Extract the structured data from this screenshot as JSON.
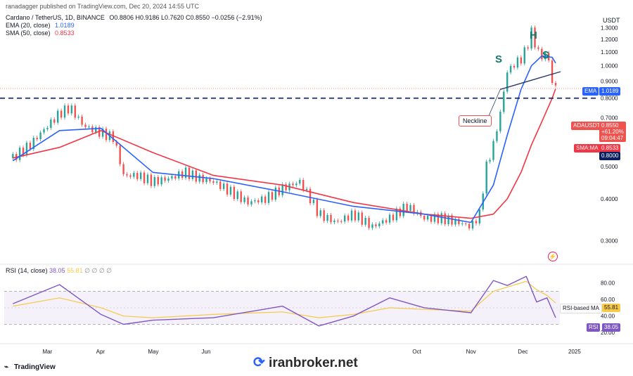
{
  "header": {
    "author_line": "ranadagger published on TradingView.com, Dec 20, 2024 14:55 UTC"
  },
  "legend": {
    "symbol_line": "Cardano / TetherUS, 1D, BINANCE",
    "ohlc": "O0.8806 H0.9186 L0.7620 C0.8550 −0.0256 (−2.91%)",
    "ema_label": "EMA (20, close)",
    "ema_value": "1.0189",
    "sma_label": "SMA (50, close)",
    "sma_value": "0.8533",
    "rsi_label": "RSI (14, close)",
    "rsi_value": "38.05",
    "rsi_ma_value": "55.81",
    "rsi_na": "∅ ∅ ∅ ∅"
  },
  "axis": {
    "currency": "USDT",
    "price_ticks": [
      "1.3000",
      "1.2000",
      "1.1000",
      "1.0000",
      "0.9000",
      "0.8000",
      "0.7000",
      "0.6000",
      "0.5000",
      "0.4000",
      "0.3000"
    ],
    "rsi_ticks": [
      "80.00",
      "60.00",
      "40.00",
      "20.00"
    ],
    "time_ticks": [
      "Mar",
      "Apr",
      "May",
      "Jun",
      "Oct",
      "Nov",
      "Dec",
      "2025"
    ]
  },
  "tags": {
    "ema_tag": "EMA",
    "ema_value": "1.0189",
    "symbol_tag": "ADAUSDT",
    "price_value": "0.8550",
    "change": "+61.20%",
    "countdown": "09:04:47",
    "sma_tag": "SMA:MA",
    "sma_value": "0.8533",
    "support_value": "0.8000",
    "rsi_ma_tag": "RSI-based MA",
    "rsi_ma_value": "55.81",
    "rsi_tag": "RSI",
    "rsi_value": "38.05"
  },
  "annotations": {
    "left_shoulder": "S",
    "head": "H",
    "right_shoulder": "S",
    "neckline": "Neckline"
  },
  "branding": {
    "tradingview": "TradingView",
    "watermark": "iranbroker.net"
  },
  "colors": {
    "up": "#26a69a",
    "down": "#ef5350",
    "ema": "#2962ff",
    "sma": "#f23645",
    "rsi": "#7e57c2",
    "rsi_ma": "#f7c948",
    "support_line": "#0b1f5e"
  },
  "chart_data": [
    {
      "type": "candlestick",
      "title": "Cardano / TetherUS, 1D, BINANCE",
      "ylim": [
        0.26,
        1.36
      ],
      "y_scale": "log",
      "ohlc_last": {
        "open": 0.8806,
        "high": 0.9186,
        "low": 0.762,
        "close": 0.855
      },
      "x_ticks": [
        "Mar",
        "Apr",
        "May",
        "Jun",
        "Oct",
        "Nov",
        "Dec",
        "2025"
      ],
      "support_level": 0.8,
      "close_series": {
        "x": [
          "Feb 10",
          "Feb 20",
          "Mar 1",
          "Mar 8",
          "Mar 14",
          "Mar 22",
          "Apr 1",
          "Apr 8",
          "Apr 14",
          "Apr 22",
          "May 1",
          "May 10",
          "May 20",
          "May 28",
          "Jun 5",
          "Jun 15",
          "Jun 25",
          "Jul 5",
          "Jul 15",
          "Jul 25",
          "Aug 5",
          "Aug 15",
          "Aug 25",
          "Sep 5",
          "Sep 15",
          "Sep 25",
          "Oct 5",
          "Oct 15",
          "Oct 25",
          "Nov 1",
          "Nov 6",
          "Nov 10",
          "Nov 14",
          "Nov 18",
          "Nov 22",
          "Nov 26",
          "Nov 30",
          "Dec 3",
          "Dec 6",
          "Dec 9",
          "Dec 12",
          "Dec 15",
          "Dec 18",
          "Dec 20"
        ],
        "y": [
          0.53,
          0.58,
          0.66,
          0.72,
          0.75,
          0.66,
          0.63,
          0.61,
          0.47,
          0.47,
          0.45,
          0.46,
          0.48,
          0.46,
          0.45,
          0.42,
          0.39,
          0.4,
          0.43,
          0.45,
          0.36,
          0.34,
          0.36,
          0.33,
          0.35,
          0.38,
          0.35,
          0.35,
          0.34,
          0.33,
          0.36,
          0.5,
          0.58,
          0.72,
          0.96,
          1.01,
          1.05,
          1.12,
          1.26,
          1.12,
          1.06,
          1.1,
          0.9,
          0.855
        ]
      },
      "series": [
        {
          "name": "EMA (20, close)",
          "last": 1.0189,
          "x": [
            "Feb 10",
            "Mar 8",
            "Apr 1",
            "May 1",
            "Jun 5",
            "Jul 15",
            "Aug 25",
            "Oct 5",
            "Nov 1",
            "Nov 14",
            "Nov 22",
            "Nov 30",
            "Dec 6",
            "Dec 12",
            "Dec 18",
            "Dec 20"
          ],
          "y": [
            0.52,
            0.64,
            0.65,
            0.48,
            0.46,
            0.42,
            0.38,
            0.36,
            0.34,
            0.44,
            0.62,
            0.85,
            1.0,
            1.07,
            1.06,
            1.0189
          ]
        },
        {
          "name": "SMA (50, close)",
          "last": 0.8533,
          "x": [
            "Feb 10",
            "Mar 8",
            "Apr 1",
            "May 1",
            "Jun 5",
            "Jul 15",
            "Aug 25",
            "Oct 5",
            "Nov 1",
            "Nov 14",
            "Nov 22",
            "Nov 30",
            "Dec 6",
            "Dec 12",
            "Dec 18",
            "Dec 20"
          ],
          "y": [
            0.53,
            0.57,
            0.64,
            0.55,
            0.47,
            0.44,
            0.39,
            0.36,
            0.35,
            0.36,
            0.4,
            0.48,
            0.58,
            0.68,
            0.8,
            0.8533
          ]
        }
      ]
    },
    {
      "type": "line",
      "title": "RSI (14, close)",
      "ylim": [
        10,
        95
      ],
      "bands": [
        30,
        70
      ],
      "x": [
        "Feb 10",
        "Mar 8",
        "Apr 1",
        "Apr 14",
        "May 1",
        "Jun 5",
        "Jul 15",
        "Aug 5",
        "Aug 25",
        "Sep 15",
        "Oct 5",
        "Nov 1",
        "Nov 14",
        "Nov 22",
        "Dec 3",
        "Dec 9",
        "Dec 15",
        "Dec 20"
      ],
      "series": [
        {
          "name": "RSI (14, close)",
          "last": 38.05,
          "y": [
            55,
            78,
            42,
            30,
            35,
            38,
            52,
            28,
            40,
            62,
            50,
            44,
            83,
            77,
            88,
            57,
            62,
            38.05
          ]
        },
        {
          "name": "RSI-based MA",
          "last": 55.81,
          "y": [
            52,
            62,
            50,
            40,
            38,
            42,
            45,
            38,
            42,
            50,
            48,
            46,
            70,
            75,
            82,
            72,
            65,
            55.81
          ]
        }
      ]
    }
  ]
}
